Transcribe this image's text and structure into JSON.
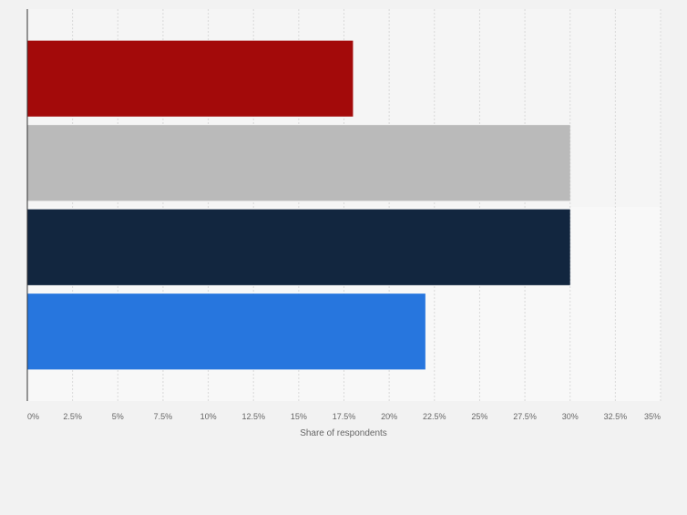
{
  "chart_data": {
    "type": "bar",
    "orientation": "horizontal",
    "categories": [
      "",
      "",
      "",
      ""
    ],
    "values": [
      18,
      30,
      30,
      22
    ],
    "colors": [
      "#a30a0a",
      "#bababa",
      "#12263f",
      "#2776de"
    ],
    "xlabel": "Share of respondents",
    "ylabel": "",
    "xlim": [
      0,
      35
    ],
    "xticks": [
      0,
      2.5,
      5,
      7.5,
      10,
      12.5,
      15,
      17.5,
      20,
      22.5,
      25,
      27.5,
      30,
      32.5,
      35
    ],
    "xtick_labels": [
      "0%",
      "2.5%",
      "5%",
      "7.5%",
      "10%",
      "12.5%",
      "15%",
      "17.5%",
      "20%",
      "22.5%",
      "25%",
      "27.5%",
      "30%",
      "32.5%",
      "35%"
    ],
    "grid": true,
    "legend": "none"
  }
}
